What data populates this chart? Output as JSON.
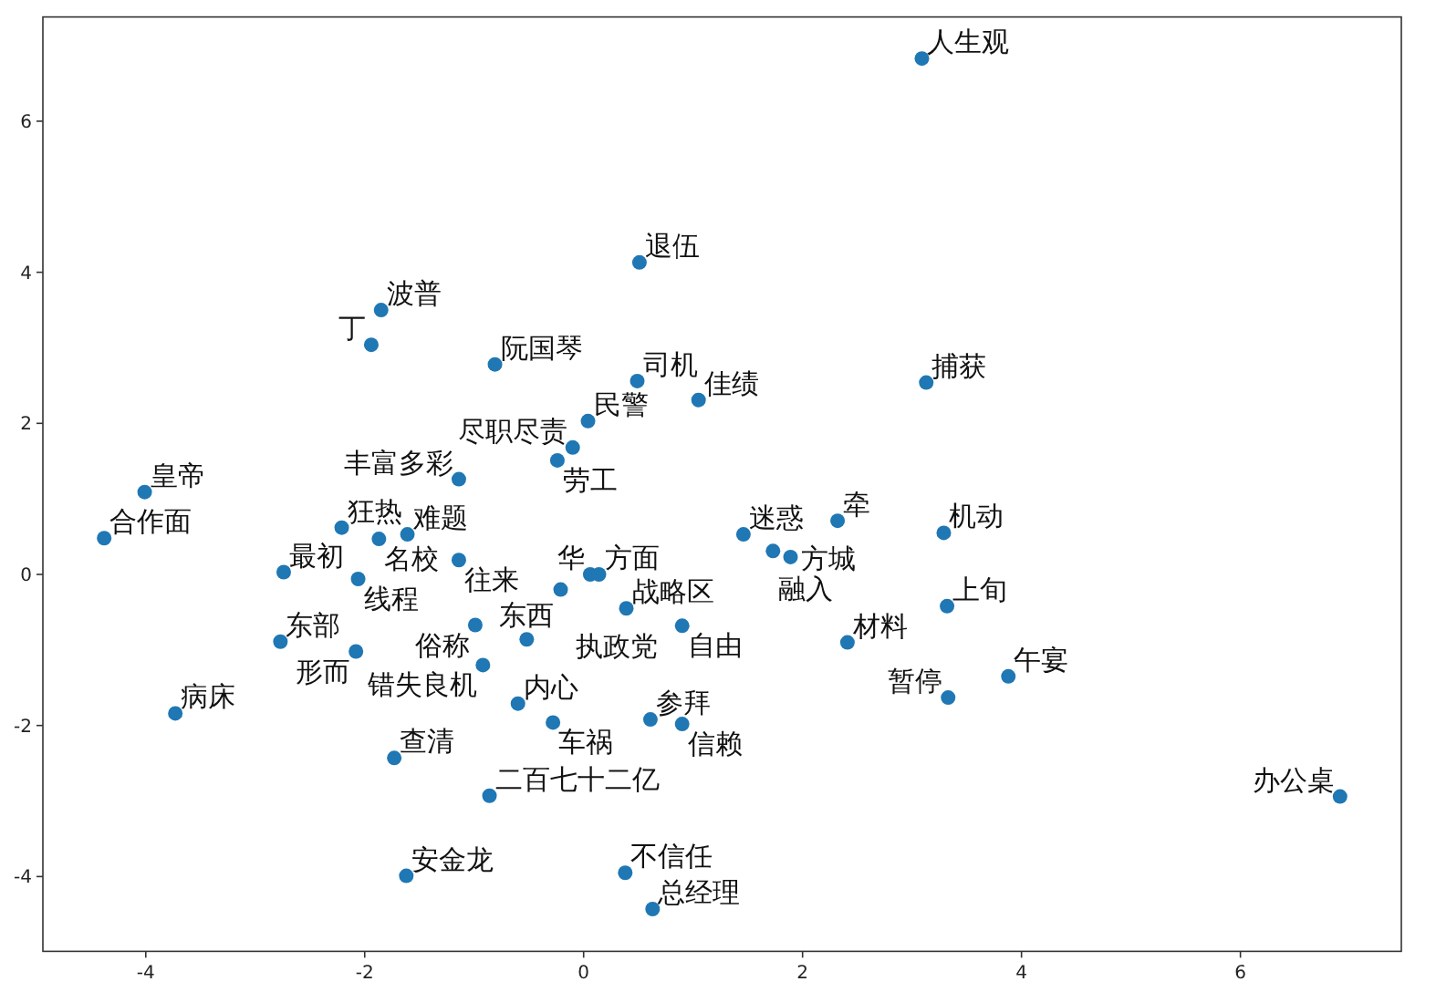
{
  "chart_data": {
    "type": "scatter",
    "color": "#1f77b4",
    "marker": "circle",
    "xlim": [
      -4.94,
      7.47
    ],
    "ylim": [
      -4.99,
      7.38
    ],
    "xticks": [
      -4,
      -2,
      0,
      2,
      4,
      6
    ],
    "yticks": [
      -4,
      -2,
      0,
      2,
      4,
      6
    ],
    "x": [
      -1.85,
      -1.94,
      -0.81,
      0.51,
      0.49,
      1.05,
      0.04,
      -0.1,
      -0.24,
      -1.14,
      -4.01,
      3.09,
      3.13,
      -4.38,
      -2.21,
      -1.87,
      -1.61,
      -2.74,
      -3.73,
      -1.73,
      -0.6,
      -0.28,
      0.61,
      0.9,
      -0.86,
      -1.62,
      0.38,
      0.63,
      -2.06,
      -1.14,
      0.06,
      0.14,
      -0.21,
      0.39,
      0.9,
      -0.99,
      -0.52,
      -0.92,
      -2.77,
      -2.08,
      1.46,
      1.73,
      1.89,
      2.32,
      3.29,
      3.32,
      2.41,
      3.88,
      3.33,
      6.91
    ],
    "values": [
      3.5,
      3.04,
      2.78,
      4.13,
      2.56,
      2.31,
      2.03,
      1.68,
      1.51,
      1.26,
      1.09,
      6.83,
      2.54,
      0.48,
      0.62,
      0.47,
      0.53,
      0.03,
      -1.84,
      -2.43,
      -1.71,
      -1.96,
      -1.92,
      -1.98,
      -2.93,
      -3.99,
      -3.95,
      -4.43,
      -0.06,
      0.19,
      0.0,
      0.0,
      -0.2,
      -0.45,
      -0.68,
      -0.67,
      -0.86,
      -1.2,
      -0.89,
      -1.02,
      0.53,
      0.31,
      0.23,
      0.71,
      0.55,
      -0.42,
      -0.9,
      -1.35,
      -1.63,
      -2.94
    ],
    "value_labels": [
      "波普",
      "丁",
      "阮国琴",
      "退伍",
      "司机",
      "佳绩",
      "民警",
      "尽职尽责",
      "劳工",
      "丰富多彩",
      "皇帝",
      "人生观",
      "捕获",
      "合作面",
      "狂热",
      "名校",
      "难题",
      "最初",
      "病床",
      "查清",
      "内心",
      "车祸",
      "参拜",
      "信赖",
      "二百七十二亿",
      "安金龙",
      "不信任",
      "总经理",
      "线程",
      "往来",
      "华",
      "方面",
      "执政党",
      "战略区",
      "自由",
      "俗称",
      "东西",
      "错失良机",
      "东部",
      "形而",
      "迷惑",
      "融入",
      "方城",
      "牵",
      "机动",
      "上旬",
      "材料",
      "午宴",
      "暂停",
      "办公桌"
    ]
  }
}
